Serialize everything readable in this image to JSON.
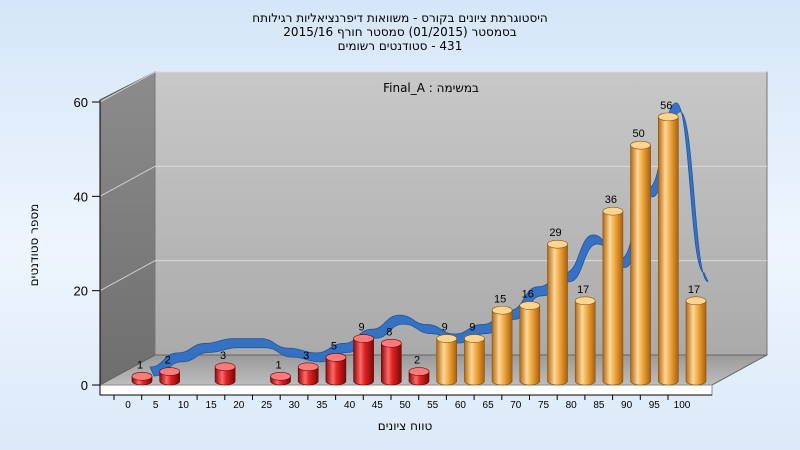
{
  "chart_data": {
    "type": "bar",
    "title_lines": [
      "היסטוגרמת ציונים בקורס - משוואות דיפרנציאליות רגילותח",
      "בסמסטר  (01/2015)  סמסטר חורף 2015/16",
      "431 - סטודנטים רשומים"
    ],
    "annotation": "Final_A : במשימה",
    "xlabel": "טווח ציונים",
    "ylabel": "מספר סטודנטים",
    "categories": [
      "0",
      "5",
      "10",
      "15",
      "20",
      "25",
      "30",
      "35",
      "40",
      "45",
      "50",
      "55",
      "60",
      "65",
      "70",
      "75",
      "80",
      "85",
      "90",
      "95",
      "100"
    ],
    "values": [
      1,
      2,
      0,
      3,
      0,
      1,
      3,
      5,
      9,
      8,
      2,
      9,
      9,
      15,
      16,
      29,
      17,
      36,
      50,
      56,
      17
    ],
    "bar_colors": [
      "#d81e1e",
      "#d81e1e",
      "#d81e1e",
      "#d81e1e",
      "#d81e1e",
      "#d81e1e",
      "#d81e1e",
      "#d81e1e",
      "#d81e1e",
      "#d81e1e",
      "#d81e1e",
      "#eaa23a",
      "#eaa23a",
      "#eaa23a",
      "#eaa23a",
      "#eaa23a",
      "#eaa23a",
      "#eaa23a",
      "#eaa23a",
      "#eaa23a",
      "#eaa23a"
    ],
    "trend_curve": [
      0,
      3,
      5,
      6,
      6,
      4,
      3,
      5,
      8,
      11,
      9,
      7,
      9,
      12,
      17,
      20,
      28,
      23,
      38,
      56,
      20
    ],
    "yticks": [
      0,
      20,
      40,
      60
    ],
    "ylim": [
      0,
      60
    ],
    "grid": true,
    "colors": {
      "fail": "#d81e1e",
      "pass": "#eaa23a",
      "trend": "#2f6fc4"
    }
  }
}
